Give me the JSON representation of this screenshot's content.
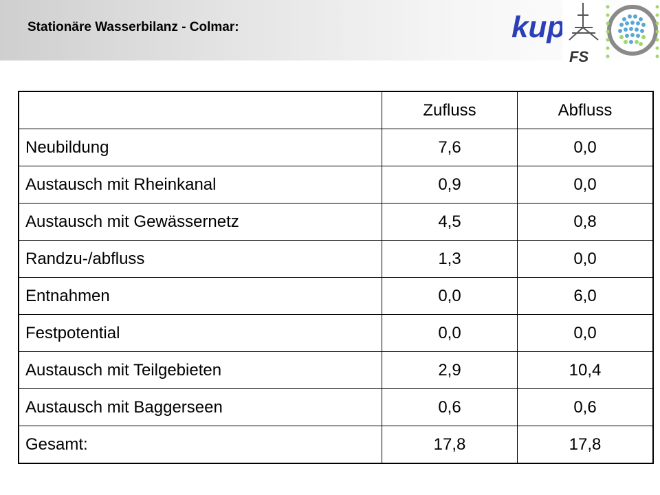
{
  "header": {
    "title": "Stationäre Wasserbilanz - Colmar:",
    "logos": {
      "kup": "kup",
      "fs": "FS"
    }
  },
  "table": {
    "columns": [
      "",
      "Zufluss",
      "Abfluss"
    ],
    "rows": [
      {
        "label": "Neubildung",
        "zufluss": "7,6",
        "abfluss": "0,0"
      },
      {
        "label": "Austausch mit Rheinkanal",
        "zufluss": "0,9",
        "abfluss": "0,0"
      },
      {
        "label": "Austausch mit Gewässernetz",
        "zufluss": "4,5",
        "abfluss": "0,8"
      },
      {
        "label": "Randzu-/abfluss",
        "zufluss": "1,3",
        "abfluss": "0,0"
      },
      {
        "label": "Entnahmen",
        "zufluss": "0,0",
        "abfluss": "6,0"
      },
      {
        "label": "Festpotential",
        "zufluss": "0,0",
        "abfluss": "0,0"
      },
      {
        "label": "Austausch mit Teilgebieten",
        "zufluss": "2,9",
        "abfluss": "10,4"
      },
      {
        "label": "Austausch mit Baggerseen",
        "zufluss": "0,6",
        "abfluss": "0,6"
      },
      {
        "label": "Gesamt:",
        "zufluss": "17,8",
        "abfluss": "17,8"
      }
    ]
  },
  "colors": {
    "kup_logo": "#2a3fb8",
    "ring_logo": "#8a8a8a",
    "dots_blue": "#5aa7d6",
    "dots_green": "#9ed86c"
  }
}
